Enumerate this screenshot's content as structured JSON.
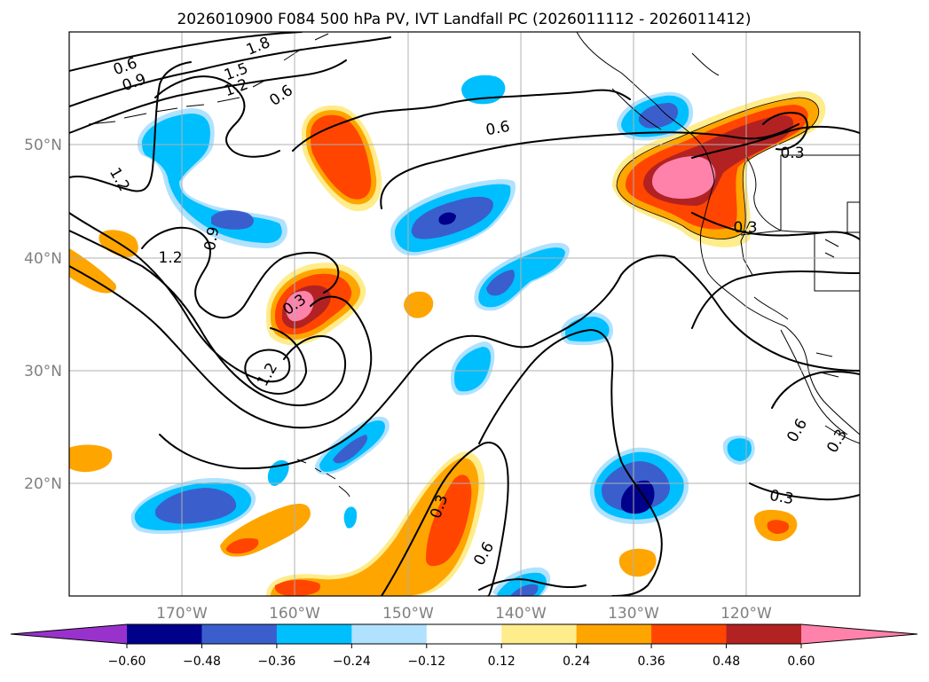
{
  "title": "2026010900 F084 500 hPa PV, IVT Landfall PC (2026011112 - 2026011412)",
  "map": {
    "lon_labels": [
      "170°W",
      "160°W",
      "150°W",
      "140°W",
      "130°W",
      "120°W"
    ],
    "lat_labels": [
      "50°N",
      "40°N",
      "30°N",
      "20°N"
    ],
    "lon_range": [
      -180,
      -110
    ],
    "lat_range": [
      10,
      60
    ]
  },
  "contour_labels": [
    "1.8",
    "0.6",
    "0.9",
    "1.5",
    "1.2",
    "0.6",
    "0.6",
    "0.3",
    "1.2",
    "0.9",
    "1.2",
    "0.3",
    "1.2",
    "0.3",
    "0.6",
    "0.3",
    "0.3",
    "0.6",
    "0.3"
  ],
  "colorbar": {
    "tick_labels": [
      "−0.60",
      "−0.48",
      "−0.36",
      "−0.24",
      "−0.12",
      "0.12",
      "0.24",
      "0.36",
      "0.48",
      "0.60"
    ],
    "colors": [
      "#9932cc",
      "#00008b",
      "#3a5fcd",
      "#00bfff",
      "#b0e2ff",
      "#ffffff",
      "#ffec8b",
      "#ffa500",
      "#ff4500",
      "#b22222",
      "#ff82ab"
    ]
  }
}
